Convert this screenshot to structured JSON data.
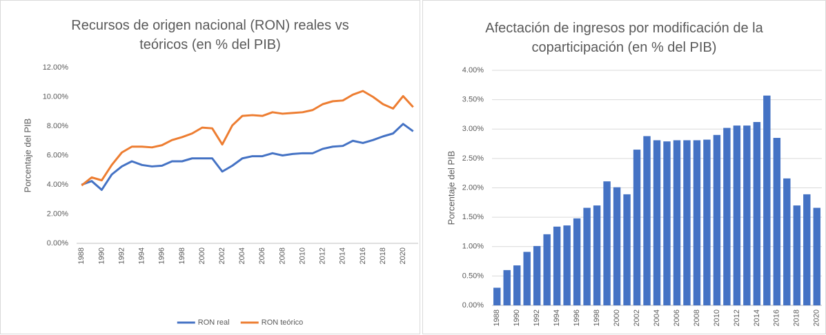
{
  "chart_data": [
    {
      "type": "line",
      "title": "Recursos de origen nacional (RON) reales vs teóricos (en % del PIB)",
      "y_label": "Porcentaje del PIB",
      "categories": [
        "1988",
        null,
        "1990",
        null,
        "1992",
        null,
        "1994",
        null,
        "1996",
        null,
        "1998",
        null,
        "2000",
        null,
        "2002",
        null,
        "2004",
        null,
        "2006",
        null,
        "2008",
        null,
        "2010",
        null,
        "2012",
        null,
        "2014",
        null,
        "2016",
        null,
        "2018",
        null,
        "2020",
        null
      ],
      "series": [
        {
          "name": "RON real",
          "color": "#4472c4",
          "values": [
            4.0,
            4.25,
            3.65,
            4.7,
            5.25,
            5.6,
            5.35,
            5.25,
            5.3,
            5.6,
            5.6,
            5.8,
            5.8,
            5.8,
            4.9,
            5.3,
            5.8,
            5.95,
            5.95,
            6.15,
            6.0,
            6.1,
            6.15,
            6.15,
            6.45,
            6.6,
            6.65,
            7.0,
            6.85,
            7.05,
            7.3,
            7.5,
            8.15,
            7.65
          ]
        },
        {
          "name": "RON teórico",
          "color": "#ed7d31",
          "values": [
            3.95,
            4.5,
            4.3,
            5.35,
            6.2,
            6.6,
            6.6,
            6.55,
            6.7,
            7.05,
            7.25,
            7.5,
            7.9,
            7.85,
            6.75,
            8.05,
            8.7,
            8.75,
            8.7,
            8.95,
            8.85,
            8.9,
            8.95,
            9.1,
            9.5,
            9.7,
            9.75,
            10.15,
            10.4,
            10.0,
            9.5,
            9.2,
            10.05,
            9.3
          ]
        }
      ],
      "ylim": [
        0,
        12
      ],
      "yticks": [
        {
          "value": 0,
          "label": "0.00%"
        },
        {
          "value": 2,
          "label": "2.00%"
        },
        {
          "value": 4,
          "label": "4.00%"
        },
        {
          "value": 6,
          "label": "6.00%"
        },
        {
          "value": 8,
          "label": "8.00%"
        },
        {
          "value": 10,
          "label": "10.00%"
        },
        {
          "value": 12,
          "label": "12.00%"
        }
      ],
      "grid": false,
      "legend": "bottom"
    },
    {
      "type": "bar",
      "title": "Afectación de ingresos por modificación de la coparticipación (en % del PIB)",
      "y_label": "Porcentaje del PIB",
      "categories": [
        "1988",
        null,
        "1990",
        null,
        "1992",
        null,
        "1994",
        null,
        "1996",
        null,
        "1998",
        null,
        "2000",
        null,
        "2002",
        null,
        "2004",
        null,
        "2006",
        null,
        "2008",
        null,
        "2010",
        null,
        "2012",
        null,
        "2014",
        null,
        "2016",
        null,
        "2018",
        null,
        "2020"
      ],
      "values": [
        0.3,
        0.6,
        0.68,
        0.91,
        1.01,
        1.21,
        1.34,
        1.36,
        1.48,
        1.66,
        1.7,
        2.11,
        2.01,
        1.89,
        2.65,
        2.88,
        2.81,
        2.79,
        2.81,
        2.81,
        2.81,
        2.82,
        2.9,
        3.02,
        3.06,
        3.06,
        3.12,
        3.57,
        2.85,
        2.16,
        1.7,
        1.89,
        1.66
      ],
      "color": "#4472c4",
      "ylim": [
        0,
        4
      ],
      "yticks": [
        {
          "value": 0,
          "label": "0.00%"
        },
        {
          "value": 0.5,
          "label": "0.50%"
        },
        {
          "value": 1,
          "label": "1.00%"
        },
        {
          "value": 1.5,
          "label": "1.50%"
        },
        {
          "value": 2,
          "label": "2.00%"
        },
        {
          "value": 2.5,
          "label": "2.50%"
        },
        {
          "value": 3,
          "label": "3.00%"
        },
        {
          "value": 3.5,
          "label": "3.50%"
        },
        {
          "value": 4,
          "label": "4.00%"
        }
      ],
      "grid": true
    }
  ]
}
